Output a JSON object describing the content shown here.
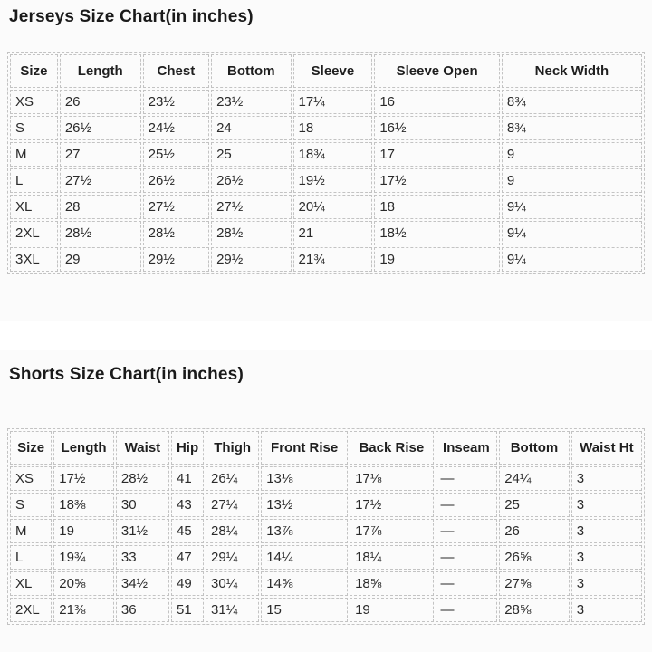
{
  "jerseys": {
    "title": "Jerseys Size Chart(in inches)",
    "columns": [
      "Size",
      "Length",
      "Chest",
      "Bottom",
      "Sleeve",
      "Sleeve Open",
      "Neck Width"
    ],
    "col_widths_pct": [
      7.7,
      13.1,
      10.7,
      12.9,
      12.8,
      20.2,
      22.6
    ],
    "rows": [
      [
        "XS",
        "26",
        "23½",
        "23½",
        "17¼",
        "16",
        "8¾"
      ],
      [
        "S",
        "26½",
        "24½",
        "24",
        "18",
        "16½",
        "8¾"
      ],
      [
        "M",
        "27",
        "25½",
        "25",
        "18¾",
        "17",
        "9"
      ],
      [
        "L",
        "27½",
        "26½",
        "26½",
        "19½",
        "17½",
        "9"
      ],
      [
        "XL",
        "28",
        "27½",
        "27½",
        "20¼",
        "18",
        "9¼"
      ],
      [
        "2XL",
        "28½",
        "28½",
        "28½",
        "21",
        "18½",
        "9¼"
      ],
      [
        "3XL",
        "29",
        "29½",
        "29½",
        "21¾",
        "19",
        "9¼"
      ]
    ]
  },
  "shorts": {
    "title": "Shorts Size Chart(in inches)",
    "columns": [
      "Size",
      "Length",
      "Waist",
      "Hip",
      "Thigh",
      "Front Rise",
      "Back Rise",
      "Inseam",
      "Bottom",
      "Waist Ht"
    ],
    "col_widths_pct": [
      6.8,
      9.8,
      8.7,
      5.3,
      8.7,
      14.1,
      13.6,
      10.1,
      11.4,
      11.5
    ],
    "rows": [
      [
        "XS",
        "17½",
        "28½",
        "41",
        "26¼",
        "13⅛",
        "17⅛",
        "—",
        "24¼",
        "3"
      ],
      [
        "S",
        "18⅜",
        "30",
        "43",
        "27¼",
        "13½",
        "17½",
        "—",
        "25",
        "3"
      ],
      [
        "M",
        "19",
        "31½",
        "45",
        "28¼",
        "13⅞",
        "17⅞",
        "—",
        "26",
        "3"
      ],
      [
        "L",
        "19¾",
        "33",
        "47",
        "29¼",
        "14¼",
        "18¼",
        "—",
        "26⅝",
        "3"
      ],
      [
        "XL",
        "20⅝",
        "34½",
        "49",
        "30¼",
        "14⅝",
        "18⅝",
        "—",
        "27⅝",
        "3"
      ],
      [
        "2XL",
        "21⅜",
        "36",
        "51",
        "31¼",
        "15",
        "19",
        "—",
        "28⅝",
        "3"
      ]
    ]
  },
  "colors": {
    "border": "#c3c3c3",
    "text": "#2a2a2a",
    "section_background": "#fbfbfb"
  }
}
